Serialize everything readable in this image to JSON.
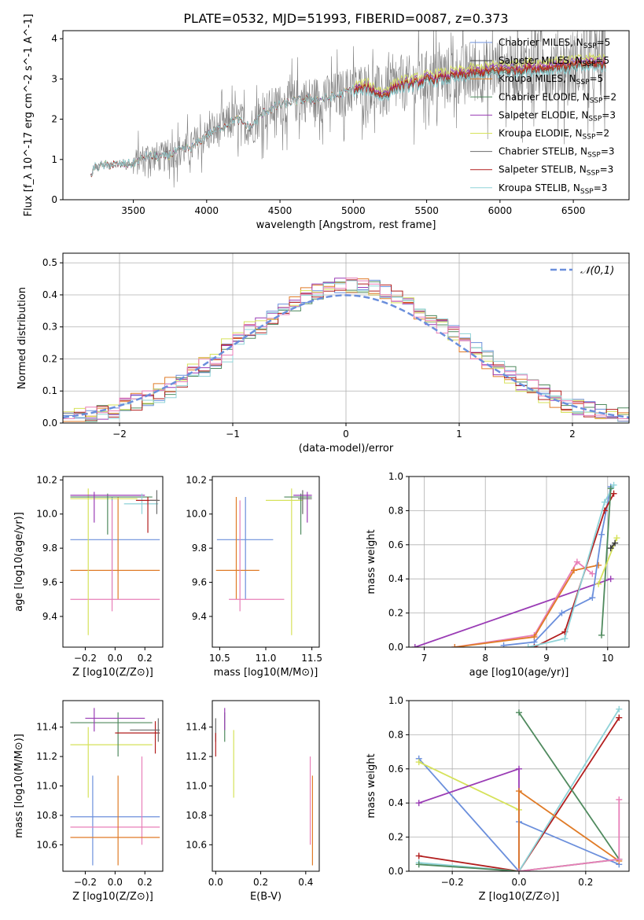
{
  "figure_title": "PLATE=0532, MJD=51993, FIBERID=0087, z=0.373",
  "colors": {
    "chabrier_miles": "#6b8fdc",
    "salpeter_miles": "#3a3a3a",
    "kroupa_miles": "#e07b27",
    "chabrier_elodie": "#4f8a5e",
    "salpeter_elodie": "#9a3cb5",
    "kroupa_elodie": "#d6e25a",
    "chabrier_stelib": "#6b6b6b",
    "salpeter_stelib": "#b21e1e",
    "kroupa_stelib": "#8fd3d8",
    "pink": "#e87fb8",
    "data_gray": "#808080",
    "grid": "#b0b0b0"
  },
  "chart_data": [
    {
      "id": "spectrum",
      "type": "line",
      "title": "PLATE=0532, MJD=51993, FIBERID=0087, z=0.373",
      "xlabel": "wavelength [Angstrom, rest frame]",
      "ylabel": "Flux [f_λ 10^-17 erg cm^-2 s^-1 A^-1]",
      "xlim": [
        3020,
        6880
      ],
      "ylim": [
        0,
        4.2
      ],
      "xticks": [
        3500,
        4000,
        4500,
        5000,
        5500,
        6000,
        6500
      ],
      "yticks": [
        0,
        1,
        2,
        3,
        4
      ],
      "model_continuum": [
        [
          3210,
          0.55
        ],
        [
          3230,
          0.8
        ],
        [
          3300,
          0.85
        ],
        [
          3400,
          0.88
        ],
        [
          3500,
          0.9
        ],
        [
          3600,
          1.1
        ],
        [
          3700,
          1.05
        ],
        [
          3800,
          1.2
        ],
        [
          3900,
          1.3
        ],
        [
          4000,
          1.6
        ],
        [
          4100,
          1.8
        ],
        [
          4200,
          2.0
        ],
        [
          4300,
          1.8
        ],
        [
          4400,
          2.2
        ],
        [
          4500,
          2.35
        ],
        [
          4600,
          2.45
        ],
        [
          4700,
          2.5
        ],
        [
          4800,
          2.5
        ],
        [
          4900,
          2.6
        ],
        [
          5000,
          2.75
        ],
        [
          5100,
          2.8
        ],
        [
          5200,
          2.6
        ],
        [
          5300,
          2.85
        ],
        [
          5400,
          2.9
        ],
        [
          5500,
          3.0
        ],
        [
          5600,
          3.05
        ],
        [
          5700,
          3.1
        ],
        [
          5800,
          3.15
        ],
        [
          5900,
          3.2
        ],
        [
          6000,
          3.25
        ],
        [
          6100,
          3.25
        ],
        [
          6200,
          3.3
        ],
        [
          6300,
          3.3
        ],
        [
          6400,
          3.35
        ],
        [
          6500,
          3.35
        ],
        [
          6600,
          3.4
        ],
        [
          6720,
          3.4
        ]
      ],
      "legend": [
        "Chabrier MILES, N_SSP=5",
        "Salpeter MILES, N_SSP=5",
        "Kroupa MILES, N_SSP=5",
        "Chabrier ELODIE, N_SSP=2",
        "Salpeter ELODIE, N_SSP=3",
        "Kroupa ELODIE, N_SSP=2",
        "Chabrier STELIB, N_SSP=3",
        "Salpeter STELIB, N_SSP=3",
        "Kroupa STELIB, N_SSP=3"
      ],
      "legend_placement": "top-right"
    },
    {
      "id": "residuals",
      "type": "line",
      "xlabel": "(data-model)/error",
      "ylabel": "Normed distribution",
      "xlim": [
        -2.5,
        2.5
      ],
      "ylim": [
        0,
        0.53
      ],
      "xticks": [
        -2,
        -1,
        0,
        1,
        2
      ],
      "yticks": [
        0.0,
        0.1,
        0.2,
        0.3,
        0.4,
        0.5
      ],
      "gaussian_label": "𝒩(0,1)",
      "legend_placement": "top-right",
      "grid": true
    },
    {
      "id": "age_vs_Z",
      "type": "scatter",
      "xlabel": "Z [log10(Z/Z⊙)]",
      "ylabel": "age  [log10(age/yr)]",
      "xlim": [
        -0.35,
        0.32
      ],
      "ylim": [
        9.22,
        10.22
      ],
      "xticks": [
        -0.2,
        0.0,
        0.2
      ],
      "yticks": [
        9.4,
        9.6,
        9.8,
        10.0,
        10.2
      ],
      "points": [
        {
          "series": "chabrier_miles",
          "x": -0.02,
          "y": 9.85,
          "xlo": -0.3,
          "xhi": 0.3,
          "ylo": 9.5,
          "yhi": 10.1
        },
        {
          "series": "kroupa_miles",
          "x": 0.02,
          "y": 9.67,
          "xlo": -0.3,
          "xhi": 0.3,
          "ylo": 9.5,
          "yhi": 10.1
        },
        {
          "series": "pink",
          "x": -0.02,
          "y": 9.5,
          "xlo": -0.3,
          "xhi": 0.3,
          "ylo": 9.43,
          "yhi": 10.08
        },
        {
          "series": "kroupa_elodie",
          "x": -0.18,
          "y": 10.09,
          "xlo": -0.3,
          "xhi": 0.15,
          "ylo": 9.29,
          "yhi": 10.15
        },
        {
          "series": "chabrier_elodie",
          "x": -0.05,
          "y": 10.1,
          "xlo": -0.3,
          "xhi": 0.25,
          "ylo": 9.88,
          "yhi": 10.12
        },
        {
          "series": "salpeter_elodie",
          "x": -0.14,
          "y": 10.11,
          "xlo": -0.3,
          "xhi": 0.2,
          "ylo": 9.95,
          "yhi": 10.13
        },
        {
          "series": "kroupa_stelib",
          "x": 0.18,
          "y": 10.06,
          "xlo": 0.06,
          "xhi": 0.29,
          "ylo": 10.0,
          "yhi": 10.12
        },
        {
          "series": "salpeter_stelib",
          "x": 0.22,
          "y": 10.08,
          "xlo": 0.14,
          "xhi": 0.29,
          "ylo": 9.89,
          "yhi": 10.1
        },
        {
          "series": "chabrier_stelib",
          "x": 0.28,
          "y": 10.08,
          "xlo": 0.23,
          "xhi": 0.3,
          "ylo": 10.0,
          "yhi": 10.14
        }
      ]
    },
    {
      "id": "age_vs_mass",
      "type": "scatter",
      "xlabel": "mass [log10(M/M⊙)]",
      "ylabel": "",
      "xlim": [
        10.42,
        11.58
      ],
      "ylim": [
        9.22,
        10.22
      ],
      "xticks": [
        10.5,
        11.0,
        11.5
      ],
      "yticks": [
        9.4,
        9.6,
        9.8,
        10.0,
        10.2
      ],
      "points": [
        {
          "series": "chabrier_miles",
          "x": 10.78,
          "y": 9.85,
          "xlo": 10.47,
          "xhi": 11.08,
          "ylo": 9.5,
          "yhi": 10.1
        },
        {
          "series": "kroupa_miles",
          "x": 10.68,
          "y": 9.67,
          "xlo": 10.46,
          "xhi": 10.93,
          "ylo": 9.5,
          "yhi": 10.1
        },
        {
          "series": "pink",
          "x": 10.72,
          "y": 9.5,
          "xlo": 10.6,
          "xhi": 11.2,
          "ylo": 9.43,
          "yhi": 10.08
        },
        {
          "series": "kroupa_elodie",
          "x": 11.28,
          "y": 10.08,
          "xlo": 11.0,
          "xhi": 11.4,
          "ylo": 9.29,
          "yhi": 10.15
        },
        {
          "series": "chabrier_elodie",
          "x": 11.38,
          "y": 10.1,
          "xlo": 11.2,
          "xhi": 11.5,
          "ylo": 9.88,
          "yhi": 10.12
        },
        {
          "series": "salpeter_elodie",
          "x": 11.45,
          "y": 10.11,
          "xlo": 11.3,
          "xhi": 11.5,
          "ylo": 9.95,
          "yhi": 10.13
        },
        {
          "series": "chabrier_stelib",
          "x": 11.4,
          "y": 10.09,
          "xlo": 11.35,
          "xhi": 11.5,
          "ylo": 10.0,
          "yhi": 10.14
        }
      ]
    },
    {
      "id": "weight_vs_age",
      "type": "line",
      "xlabel": "age  [log10(age/yr)]",
      "ylabel": "mass weight",
      "xlim": [
        6.75,
        10.35
      ],
      "ylim": [
        0,
        1.0
      ],
      "xticks": [
        7,
        8,
        9,
        10
      ],
      "yticks": [
        0.0,
        0.2,
        0.4,
        0.6,
        0.8,
        1.0
      ],
      "series": [
        {
          "key": "salpeter_elodie",
          "x": [
            6.85,
            10.05
          ],
          "y": [
            0.0,
            0.4
          ]
        },
        {
          "key": "pink",
          "x": [
            7.5,
            8.8,
            9.5,
            9.75
          ],
          "y": [
            0.0,
            0.07,
            0.5,
            0.43
          ]
        },
        {
          "key": "kroupa_miles",
          "x": [
            7.5,
            8.8,
            9.45,
            9.85
          ],
          "y": [
            0.0,
            0.06,
            0.45,
            0.48
          ]
        },
        {
          "key": "chabrier_miles",
          "x": [
            8.3,
            8.8,
            9.25,
            9.75,
            9.9,
            10.05
          ],
          "y": [
            0.01,
            0.03,
            0.2,
            0.29,
            0.66,
            0.94
          ]
        },
        {
          "key": "salpeter_stelib",
          "x": [
            8.8,
            9.3,
            9.95,
            10.1
          ],
          "y": [
            0.0,
            0.09,
            0.8,
            0.9
          ]
        },
        {
          "key": "kroupa_stelib",
          "x": [
            8.7,
            9.3,
            9.95,
            10.1
          ],
          "y": [
            0.0,
            0.05,
            0.85,
            0.95
          ]
        },
        {
          "key": "chabrier_elodie",
          "x": [
            9.9,
            10.05
          ],
          "y": [
            0.07,
            0.93
          ]
        },
        {
          "key": "kroupa_elodie",
          "x": [
            9.85,
            10.15
          ],
          "y": [
            0.37,
            0.64
          ]
        },
        {
          "key": "salpeter_miles",
          "x": [
            10.05,
            10.12
          ],
          "y": [
            0.58,
            0.61
          ]
        }
      ]
    },
    {
      "id": "mass_vs_Z",
      "type": "scatter",
      "xlabel": "Z [log10(Z/Z⊙)]",
      "ylabel": "mass [log10(M/M⊙)]",
      "xlim": [
        -0.35,
        0.32
      ],
      "ylim": [
        10.42,
        11.58
      ],
      "xticks": [
        -0.2,
        0.0,
        0.2
      ],
      "yticks": [
        10.6,
        10.8,
        11.0,
        11.2,
        11.4
      ],
      "points": [
        {
          "series": "chabrier_miles",
          "x": -0.15,
          "y": 10.79,
          "xlo": -0.3,
          "xhi": 0.3,
          "ylo": 10.46,
          "yhi": 11.07
        },
        {
          "series": "pink",
          "x": 0.18,
          "y": 10.72,
          "xlo": -0.3,
          "xhi": 0.3,
          "ylo": 10.6,
          "yhi": 11.2
        },
        {
          "series": "kroupa_miles",
          "x": 0.02,
          "y": 10.65,
          "xlo": -0.3,
          "xhi": 0.3,
          "ylo": 10.46,
          "yhi": 11.07
        },
        {
          "series": "kroupa_elodie",
          "x": -0.18,
          "y": 11.28,
          "xlo": -0.3,
          "xhi": 0.25,
          "ylo": 10.92,
          "yhi": 11.4
        },
        {
          "series": "chabrier_elodie",
          "x": 0.02,
          "y": 11.43,
          "xlo": -0.3,
          "xhi": 0.25,
          "ylo": 11.2,
          "yhi": 11.5
        },
        {
          "series": "salpeter_elodie",
          "x": -0.14,
          "y": 11.46,
          "xlo": -0.2,
          "xhi": 0.2,
          "ylo": 11.37,
          "yhi": 11.53
        },
        {
          "series": "salpeter_stelib",
          "x": 0.27,
          "y": 11.36,
          "xlo": 0.0,
          "xhi": 0.3,
          "ylo": 11.22,
          "yhi": 11.44
        },
        {
          "series": "chabrier_stelib",
          "x": 0.29,
          "y": 11.38,
          "xlo": 0.1,
          "xhi": 0.3,
          "ylo": 11.3,
          "yhi": 11.46
        }
      ]
    },
    {
      "id": "mass_vs_ebv",
      "type": "scatter",
      "xlabel": "E(B-V)",
      "ylabel": "",
      "xlim": [
        -0.015,
        0.46
      ],
      "ylim": [
        10.42,
        11.58
      ],
      "xticks": [
        0.0,
        0.2,
        0.4
      ],
      "yticks": [
        10.6,
        10.8,
        11.0,
        11.2,
        11.4
      ],
      "points": [
        {
          "series": "chabrier_stelib",
          "x": 0.0,
          "y": 11.38,
          "ylo": 11.3,
          "yhi": 11.46
        },
        {
          "series": "salpeter_stelib",
          "x": 0.0,
          "y": 11.28,
          "ylo": 11.2,
          "yhi": 11.36
        },
        {
          "series": "chabrier_elodie",
          "x": 0.04,
          "y": 11.43,
          "ylo": 11.3,
          "yhi": 11.5
        },
        {
          "series": "salpeter_elodie",
          "x": 0.04,
          "y": 11.46,
          "ylo": 11.38,
          "yhi": 11.53
        },
        {
          "series": "kroupa_elodie",
          "x": 0.08,
          "y": 11.15,
          "ylo": 10.92,
          "yhi": 11.38
        },
        {
          "series": "pink",
          "x": 0.42,
          "y": 10.9,
          "ylo": 10.6,
          "yhi": 11.2
        },
        {
          "series": "kroupa_miles",
          "x": 0.43,
          "y": 10.8,
          "ylo": 10.46,
          "yhi": 11.07
        }
      ]
    },
    {
      "id": "weight_vs_Z",
      "type": "line",
      "xlabel": "Z [log10(Z/Z⊙)]",
      "ylabel": "mass weight",
      "xlim": [
        -0.33,
        0.33
      ],
      "ylim": [
        0,
        1.0
      ],
      "xticks": [
        -0.2,
        0.0,
        0.2
      ],
      "yticks": [
        0.0,
        0.2,
        0.4,
        0.6,
        0.8,
        1.0
      ],
      "series": [
        {
          "key": "chabrier_miles",
          "x": [
            -0.3,
            0.0,
            0.0,
            0.3
          ],
          "y": [
            0.66,
            0.0,
            0.29,
            0.04
          ]
        },
        {
          "key": "kroupa_elodie",
          "x": [
            -0.3,
            0.0,
            0.0
          ],
          "y": [
            0.64,
            0.36,
            0.0
          ]
        },
        {
          "key": "salpeter_elodie",
          "x": [
            -0.3,
            0.0,
            0.0
          ],
          "y": [
            0.4,
            0.6,
            0.0
          ]
        },
        {
          "key": "salpeter_stelib",
          "x": [
            -0.3,
            0.0,
            0.3
          ],
          "y": [
            0.09,
            0.0,
            0.9
          ]
        },
        {
          "key": "kroupa_stelib",
          "x": [
            -0.3,
            0.0,
            0.3
          ],
          "y": [
            0.05,
            0.0,
            0.95
          ]
        },
        {
          "key": "chabrier_elodie",
          "x": [
            -0.3,
            0.0,
            0.3
          ],
          "y": [
            0.04,
            0.0,
            0.07
          ]
        },
        {
          "key": "chabrier_elodie",
          "x": [
            0.0,
            0.3
          ],
          "y": [
            0.93,
            0.07
          ]
        },
        {
          "key": "kroupa_miles",
          "x": [
            0.0,
            0.0,
            0.3
          ],
          "y": [
            0.0,
            0.47,
            0.06
          ]
        },
        {
          "key": "pink",
          "x": [
            0.0,
            0.3,
            0.3
          ],
          "y": [
            0.0,
            0.07,
            0.42
          ]
        }
      ]
    }
  ]
}
